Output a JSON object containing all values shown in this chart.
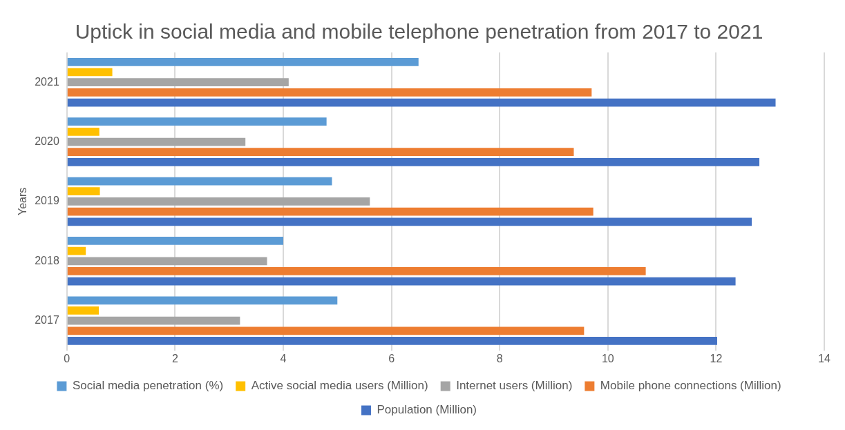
{
  "chart_data": {
    "type": "bar",
    "orientation": "horizontal",
    "title": "Uptick in social media and mobile telephone penetration from 2017 to 2021",
    "ylabel": "Years",
    "categories": [
      "2021",
      "2020",
      "2019",
      "2018",
      "2017"
    ],
    "series": [
      {
        "name": "Social media penetration (%)",
        "color": "#5b9bd5",
        "values": [
          6.5,
          4.8,
          4.9,
          4.0,
          5.0
        ]
      },
      {
        "name": "Active social media users (Million)",
        "color": "#ffc000",
        "values": [
          0.84,
          0.6,
          0.61,
          0.35,
          0.59
        ]
      },
      {
        "name": "Internet users (Million)",
        "color": "#a5a5a5",
        "values": [
          4.1,
          3.3,
          5.6,
          3.7,
          3.2
        ]
      },
      {
        "name": "Mobile phone connections (Million)",
        "color": "#ed7d31",
        "values": [
          9.7,
          9.37,
          9.73,
          10.7,
          9.56
        ]
      },
      {
        "name": "Population (Million)",
        "color": "#4472c4",
        "values": [
          13.1,
          12.8,
          12.66,
          12.36,
          12.02
        ]
      }
    ],
    "xlim": [
      0,
      14
    ],
    "xticks": [
      0,
      2,
      4,
      6,
      8,
      10,
      12,
      14
    ],
    "grid": "x",
    "legend": "bottom"
  }
}
